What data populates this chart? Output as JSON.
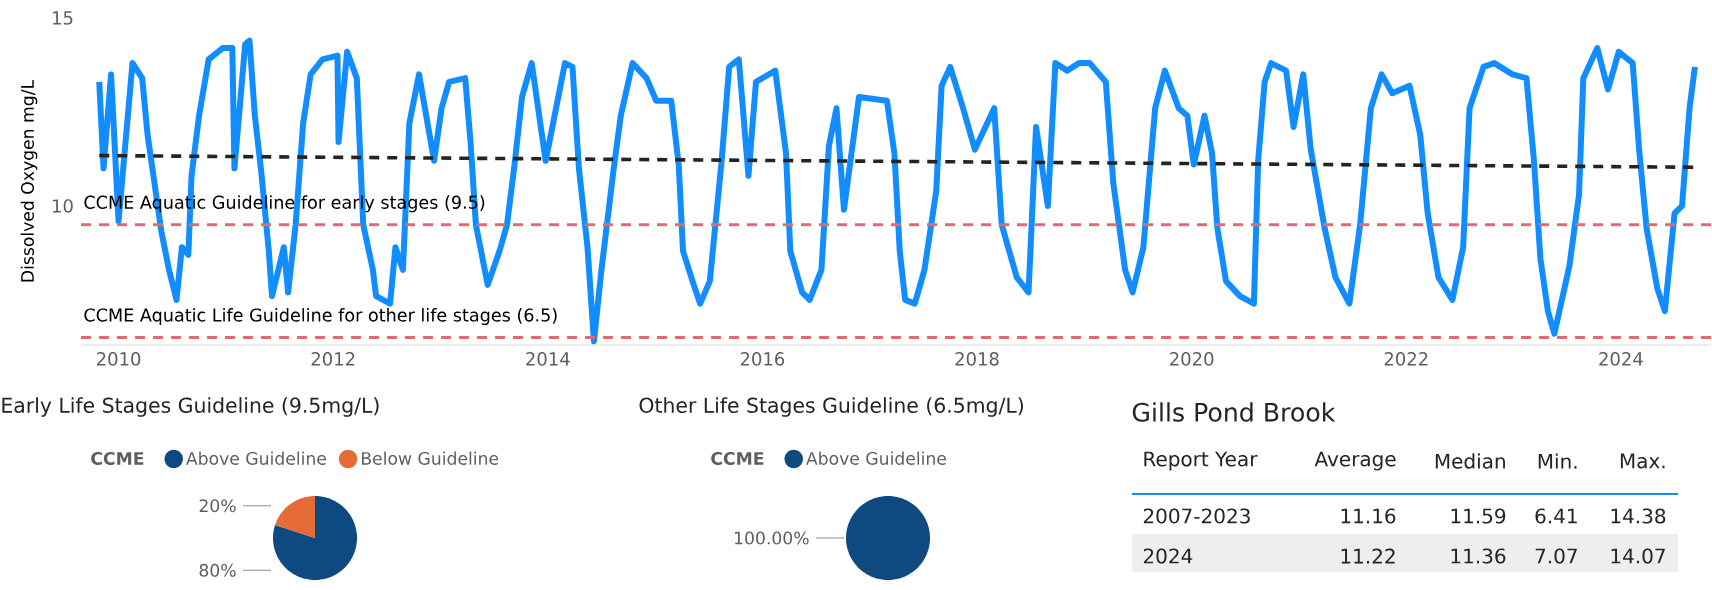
{
  "chart_data": [
    {
      "type": "line",
      "ylabel": "Dissolved Oxygen mg/L",
      "xlim": [
        2009.65,
        2024.84
      ],
      "ylim": [
        6.3,
        15
      ],
      "xticks": [
        2010,
        2012,
        2014,
        2016,
        2018,
        2020,
        2022,
        2024
      ],
      "yticks": [
        10,
        15
      ],
      "series": [
        {
          "color": "#118dff",
          "x": [
            2009.82,
            2009.86,
            2009.93,
            2010.0,
            2010.13,
            2010.22,
            2010.27,
            2010.32,
            2010.4,
            2010.47,
            2010.54,
            2010.59,
            2010.65,
            2010.68,
            2010.75,
            2010.84,
            2010.97,
            2011.06,
            2011.08,
            2011.18,
            2011.22,
            2011.27,
            2011.33,
            2011.4,
            2011.43,
            2011.54,
            2011.58,
            2011.65,
            2011.72,
            2011.79,
            2011.9,
            2012.04,
            2012.05,
            2012.13,
            2012.22,
            2012.28,
            2012.37,
            2012.4,
            2012.53,
            2012.58,
            2012.65,
            2012.71,
            2012.8,
            2012.94,
            2013.01,
            2013.08,
            2013.23,
            2013.28,
            2013.33,
            2013.44,
            2013.55,
            2013.62,
            2013.69,
            2013.76,
            2013.85,
            2013.98,
            2014.16,
            2014.23,
            2014.29,
            2014.37,
            2014.43,
            2014.5,
            2014.61,
            2014.68,
            2014.79,
            2014.92,
            2015.01,
            2015.15,
            2015.22,
            2015.26,
            2015.36,
            2015.42,
            2015.51,
            2015.62,
            2015.69,
            2015.78,
            2015.87,
            2015.94,
            2016.12,
            2016.22,
            2016.26,
            2016.37,
            2016.44,
            2016.55,
            2016.62,
            2016.69,
            2016.76,
            2016.9,
            2017.16,
            2017.23,
            2017.28,
            2017.33,
            2017.42,
            2017.51,
            2017.62,
            2017.67,
            2017.75,
            2017.87,
            2017.98,
            2018.16,
            2018.23,
            2018.37,
            2018.48,
            2018.55,
            2018.66,
            2018.73,
            2018.84,
            2018.95,
            2019.05,
            2019.2,
            2019.27,
            2019.38,
            2019.45,
            2019.55,
            2019.66,
            2019.75,
            2019.88,
            2019.96,
            2020.02,
            2020.12,
            2020.19,
            2020.24,
            2020.32,
            2020.45,
            2020.58,
            2020.62,
            2020.68,
            2020.74,
            2020.88,
            2020.95,
            2021.04,
            2021.11,
            2021.24,
            2021.34,
            2021.47,
            2021.57,
            2021.67,
            2021.77,
            2021.87,
            2022.03,
            2022.13,
            2022.2,
            2022.3,
            2022.43,
            2022.53,
            2022.59,
            2022.72,
            2022.82,
            2022.99,
            2023.12,
            2023.19,
            2023.25,
            2023.32,
            2023.38,
            2023.52,
            2023.61,
            2023.65,
            2023.78,
            2023.88,
            2023.98,
            2024.11,
            2024.17,
            2024.24,
            2024.34,
            2024.41,
            2024.5,
            2024.57,
            2024.64,
            2024.69
          ],
          "values": [
            13.3,
            11.0,
            13.5,
            9.6,
            13.8,
            13.4,
            11.9,
            10.9,
            9.3,
            8.3,
            7.5,
            8.9,
            8.7,
            10.8,
            12.4,
            13.9,
            14.2,
            14.2,
            11.0,
            14.3,
            14.4,
            12.4,
            10.9,
            8.8,
            7.6,
            8.9,
            7.7,
            9.5,
            12.2,
            13.5,
            13.9,
            14.0,
            11.7,
            14.1,
            13.4,
            9.5,
            8.3,
            7.6,
            7.4,
            8.9,
            8.3,
            12.2,
            13.5,
            11.2,
            12.6,
            13.3,
            13.4,
            11.7,
            9.5,
            7.9,
            8.8,
            9.5,
            11.1,
            12.9,
            13.8,
            11.2,
            13.8,
            13.7,
            11.0,
            8.9,
            6.4,
            8.3,
            10.9,
            12.4,
            13.8,
            13.4,
            12.8,
            12.8,
            11.1,
            8.8,
            7.9,
            7.4,
            8.0,
            11.2,
            13.7,
            13.9,
            10.8,
            13.3,
            13.6,
            11.4,
            8.8,
            7.7,
            7.5,
            8.3,
            11.6,
            12.6,
            9.9,
            12.9,
            12.8,
            11.4,
            8.8,
            7.5,
            7.4,
            8.3,
            10.4,
            13.2,
            13.7,
            12.6,
            11.5,
            12.6,
            9.5,
            8.1,
            7.7,
            12.1,
            10.0,
            13.8,
            13.6,
            13.8,
            13.8,
            13.3,
            10.6,
            8.3,
            7.7,
            8.9,
            12.6,
            13.6,
            12.6,
            12.4,
            11.1,
            12.4,
            11.4,
            9.4,
            8.0,
            7.6,
            7.4,
            11.2,
            13.3,
            13.8,
            13.6,
            12.1,
            13.5,
            11.5,
            9.4,
            8.1,
            7.4,
            9.5,
            12.6,
            13.5,
            13.0,
            13.2,
            11.9,
            9.8,
            8.1,
            7.5,
            8.9,
            12.6,
            13.7,
            13.8,
            13.5,
            13.4,
            11.2,
            8.6,
            7.2,
            6.6,
            8.4,
            10.3,
            13.4,
            14.2,
            13.1,
            14.1,
            13.8,
            11.5,
            9.4,
            7.8,
            7.2,
            9.8,
            10.0,
            12.6,
            13.7
          ]
        },
        {
          "type": "line",
          "color": "#252423",
          "line_style": "dashed",
          "x": [
            2009.82,
            2024.69
          ],
          "values": [
            11.34,
            11.03
          ]
        }
      ],
      "ref_lines": [
        {
          "axis": "y",
          "value": 9.5,
          "label": "CCME Aquatic Guideline for early stages (9.5)",
          "color": "#de6b74",
          "line_style": "dashed"
        },
        {
          "axis": "y",
          "value": 6.5,
          "label": "CCME Aquatic Life Guideline for other life stages (6.5)",
          "color": "#de6b74",
          "line_style": "dashed"
        }
      ]
    },
    {
      "type": "pie",
      "title": "Early Life Stages Guideline (9.5mg/L)",
      "legend_title": "CCME",
      "legend": "top",
      "categories": [
        "Above Guideline",
        "Below Guideline"
      ],
      "values": [
        80,
        20
      ],
      "colors": [
        "#0e4a80",
        "#e66c37"
      ],
      "value_labels": [
        "80%",
        "20%"
      ]
    },
    {
      "type": "pie",
      "title": "Other Life Stages Guideline (6.5mg/L)",
      "legend_title": "CCME",
      "legend": "top",
      "categories": [
        "Above Guideline"
      ],
      "values": [
        100
      ],
      "colors": [
        "#0e4a80"
      ],
      "value_labels": [
        "100.00%"
      ]
    },
    {
      "type": "other",
      "title": "Gills Pond Brook",
      "annotations": [
        "Report Year",
        "Average",
        "Median",
        "Min.",
        "Max.",
        "2007-2023",
        "11.16",
        "11.59",
        "6.41",
        "14.38",
        "2024",
        "11.22",
        "11.36",
        "7.07",
        "14.07"
      ]
    }
  ]
}
